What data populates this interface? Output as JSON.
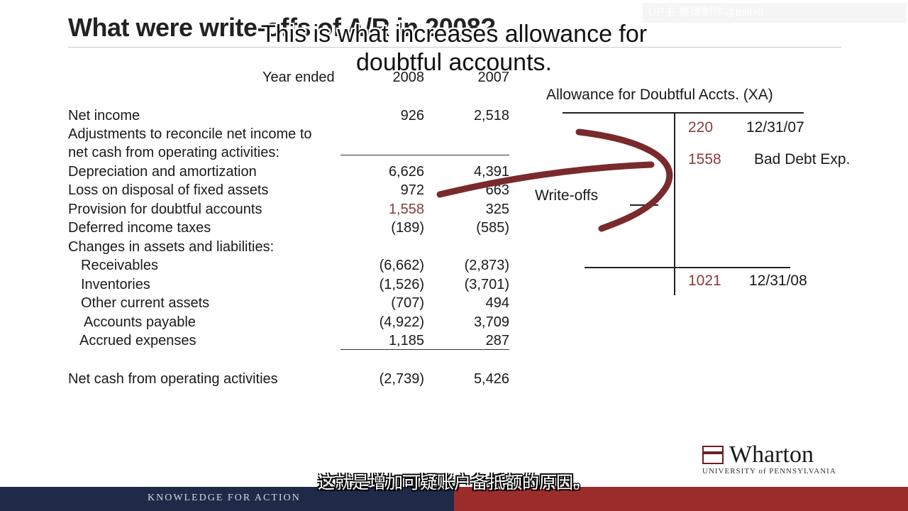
{
  "slide": {
    "title": "What were write-offs of A/R in 2008?",
    "watermark": "UP主 整理制作@bilibili",
    "subtitle_en": "This is what increases allowance for doubtful accounts.",
    "subtitle_cn": "这就是增加可疑账户备抵额的原因。"
  },
  "cash_flow": {
    "header": {
      "label": "Year ended",
      "col1": "2008",
      "col2": "2007"
    },
    "rows": [
      {
        "label": "Net income",
        "v1": "926",
        "v2": "2,518"
      },
      {
        "label": "Adjustments to reconcile net income to",
        "v1": "",
        "v2": ""
      },
      {
        "label": "net cash from operating activities:",
        "v1": "",
        "v2": ""
      },
      {
        "label": "Depreciation and amortization",
        "v1": "6,626",
        "v2": "4,391"
      },
      {
        "label": "Loss on disposal of fixed assets",
        "v1": "972",
        "v2": "663"
      },
      {
        "label": "Provision for doubtful accounts",
        "v1": "1,558",
        "v2": "325"
      },
      {
        "label": "Deferred income taxes",
        "v1": "(189)",
        "v2": "(585)"
      },
      {
        "label": "Changes in assets and liabilities:",
        "v1": "",
        "v2": ""
      },
      {
        "label": "Receivables",
        "v1": "(6,662)",
        "v2": "(2,873)"
      },
      {
        "label": "Inventories",
        "v1": "(1,526)",
        "v2": "(3,701)"
      },
      {
        "label": "Other current assets",
        "v1": "(707)",
        "v2": "494"
      },
      {
        "label": "Accounts payable",
        "v1": "(4,922)",
        "v2": "3,709"
      },
      {
        "label": "Accrued expenses",
        "v1": "1,185",
        "v2": "287"
      },
      {
        "label": "Net cash from operating activities",
        "v1": "(2,739)",
        "v2": "5,426"
      }
    ]
  },
  "t_account": {
    "title": "Allowance for Doubtful Accts. (XA)",
    "beginning_amount": "220",
    "beginning_date": "12/31/07",
    "bad_debt_amount": "1558",
    "bad_debt_label": "Bad Debt Exp.",
    "writeoffs_label": "Write-offs",
    "ending_amount": "1021",
    "ending_date": "12/31/08"
  },
  "logo": {
    "name": "Wharton",
    "university": "UNIVERSITY of PENNSYLVANIA"
  },
  "footer": {
    "tagline": "KNOWLEDGE FOR ACTION"
  },
  "colors": {
    "navy": "#1e2a47",
    "maroon": "#9b2c2c",
    "highlight": "#8b3a3a"
  }
}
